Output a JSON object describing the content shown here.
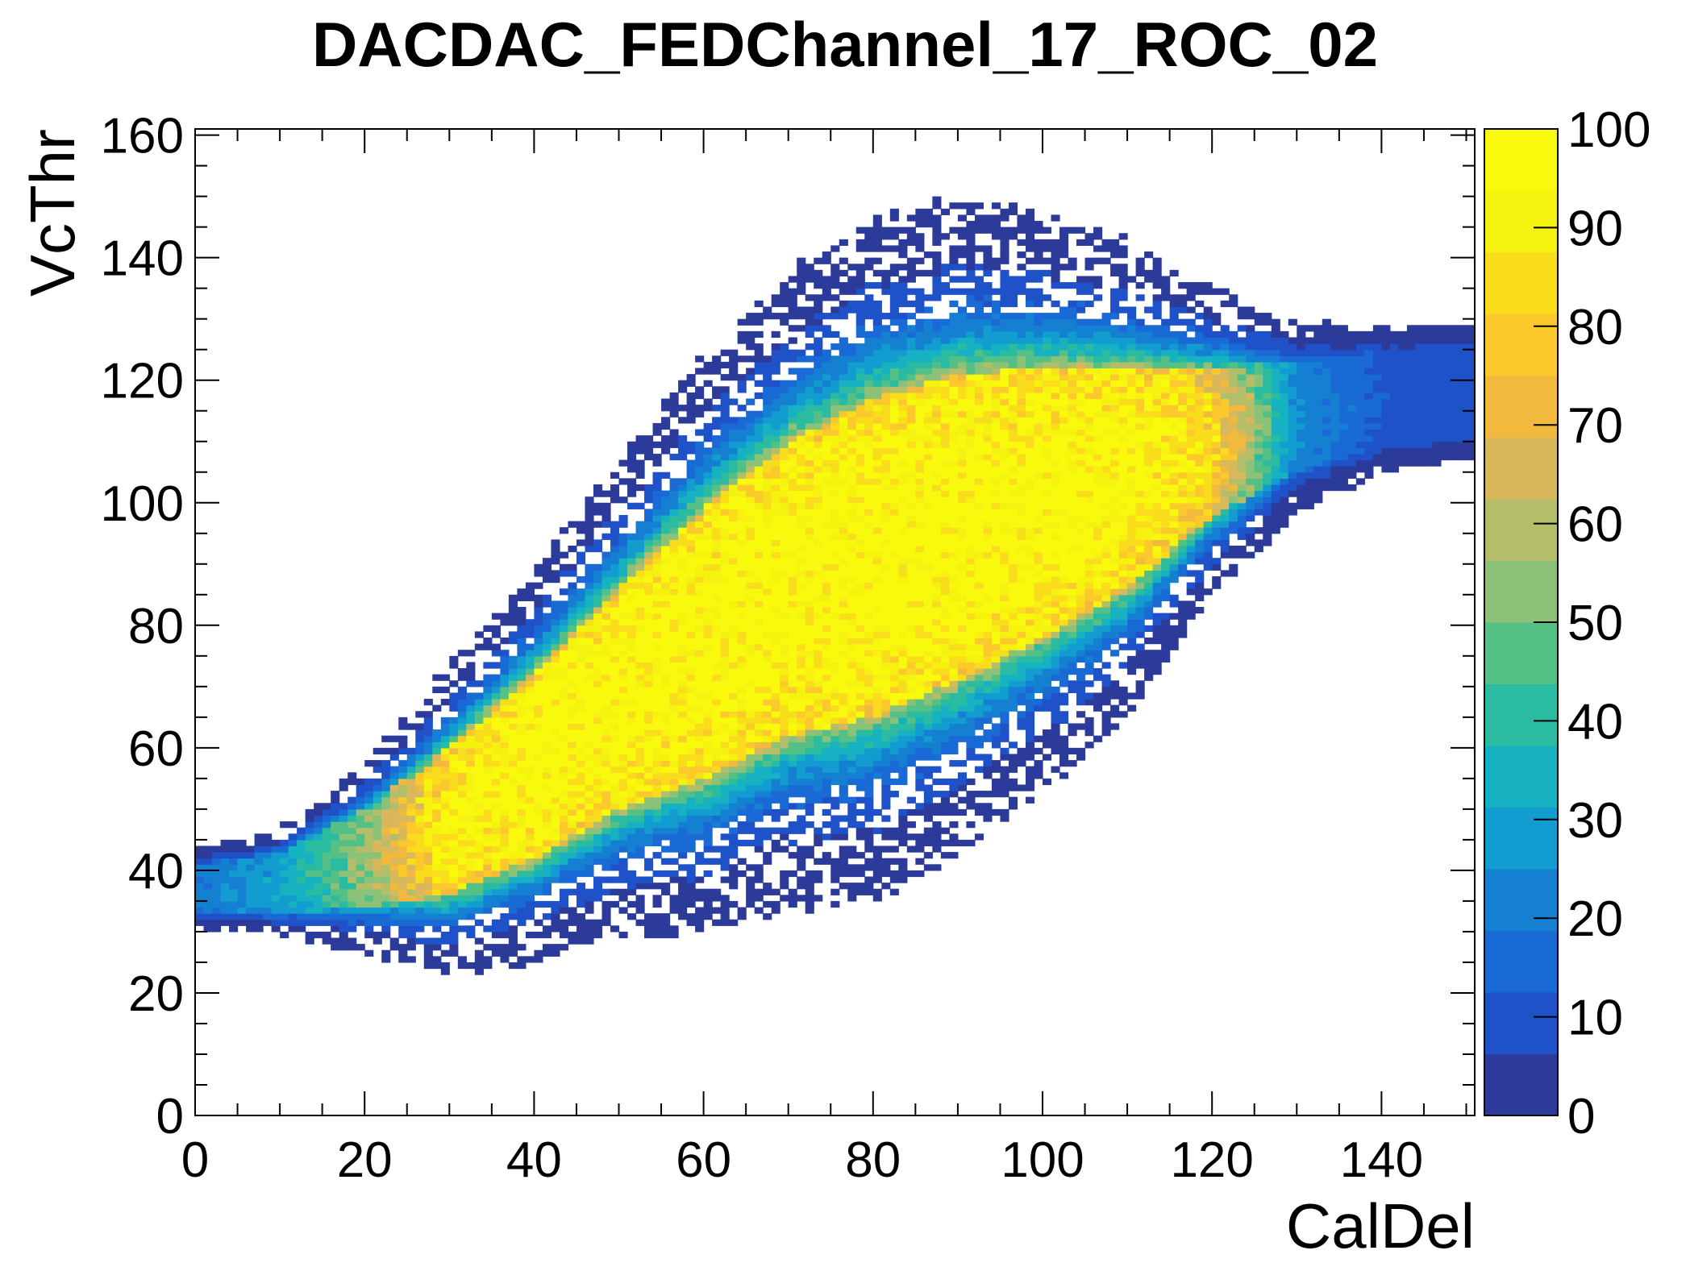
{
  "chart_data": {
    "type": "heatmap",
    "title": "DACDAC_FEDChannel_17_ROC_02",
    "xlabel": "CalDel",
    "ylabel": "VcThr",
    "xlim": [
      0,
      151
    ],
    "ylim": [
      0,
      161
    ],
    "x_ticks": [
      0,
      20,
      40,
      60,
      80,
      100,
      120,
      140
    ],
    "y_ticks": [
      0,
      20,
      40,
      60,
      80,
      100,
      120,
      140,
      160
    ],
    "z_range": [
      0,
      100
    ],
    "z_ticks": [
      0,
      10,
      20,
      30,
      40,
      50,
      60,
      70,
      80,
      90,
      100
    ],
    "palette": [
      "#2c3b9a",
      "#1f52c8",
      "#1a6ad6",
      "#1580d2",
      "#129ccf",
      "#16b2c2",
      "#2abba0",
      "#55c086",
      "#8bc277",
      "#b3bd6a",
      "#d8b85a",
      "#f2b93f",
      "#fbc92b",
      "#f9dc1c",
      "#f6f20f",
      "#f9f90e"
    ],
    "grid": false,
    "legend": "colorbar-right",
    "description_of_data": "",
    "band": {
      "points_x": [
        0,
        10,
        20,
        30,
        40,
        50,
        60,
        70,
        80,
        90,
        100,
        110,
        120,
        130,
        140,
        150
      ],
      "center_y": [
        37,
        38,
        42,
        48,
        57,
        68,
        77,
        86,
        91,
        96,
        100,
        104,
        110,
        114,
        117,
        118
      ],
      "half_width": [
        4,
        5,
        8,
        12,
        15,
        18,
        22,
        24,
        26,
        25,
        22,
        18,
        12,
        9,
        8,
        8
      ],
      "peak_value": [
        20,
        30,
        55,
        95,
        100,
        100,
        100,
        100,
        100,
        100,
        100,
        100,
        85,
        25,
        12,
        8
      ]
    }
  }
}
